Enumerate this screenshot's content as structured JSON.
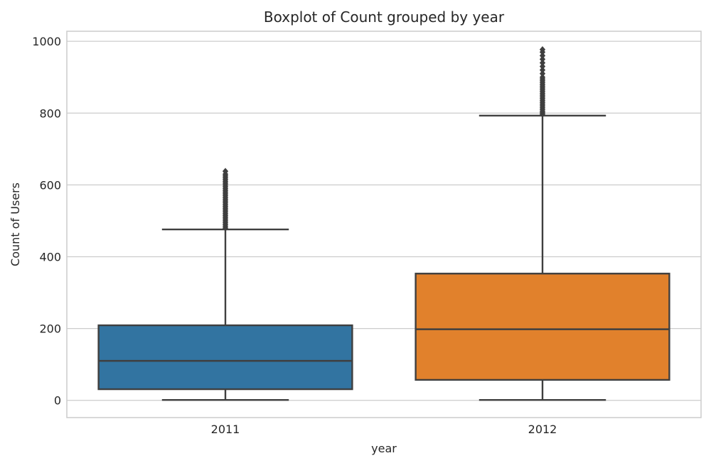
{
  "chart_data": {
    "type": "box",
    "title": "Boxplot of Count grouped by year",
    "xlabel": "year",
    "ylabel": "Count of Users",
    "categories": [
      "2011",
      "2012"
    ],
    "ylim": [
      -48,
      1028
    ],
    "yticks": [
      0,
      200,
      400,
      600,
      800,
      1000
    ],
    "grid": true,
    "colors": {
      "2011": "#3274a1",
      "2012": "#e1812c",
      "edge": "#3f3f3f",
      "grid": "#cccccc",
      "frame": "#cccccc"
    },
    "boxes": [
      {
        "category": "2011",
        "whisker_low": 1,
        "q1": 31,
        "median": 110,
        "q3": 209,
        "whisker_high": 476,
        "outliers": [
          480,
          485,
          490,
          495,
          500,
          505,
          510,
          515,
          520,
          525,
          530,
          535,
          540,
          545,
          550,
          555,
          560,
          565,
          570,
          575,
          580,
          585,
          590,
          595,
          600,
          605,
          610,
          615,
          620,
          625,
          630,
          638
        ]
      },
      {
        "category": "2012",
        "whisker_low": 1,
        "q1": 57,
        "median": 198,
        "q3": 353,
        "whisker_high": 793,
        "outliers": [
          797,
          801,
          805,
          810,
          815,
          820,
          825,
          830,
          835,
          840,
          845,
          850,
          855,
          860,
          865,
          870,
          875,
          880,
          885,
          890,
          895,
          900,
          910,
          920,
          930,
          940,
          950,
          960,
          970,
          977
        ]
      }
    ]
  }
}
